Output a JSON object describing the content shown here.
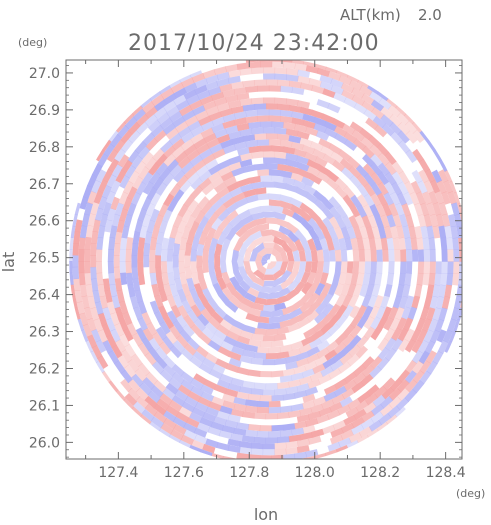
{
  "header": {
    "altitude_label": "ALT(km)",
    "altitude_value": "2.0",
    "timestamp": "2017/10/24 23:42:00"
  },
  "colors": {
    "positive": "#f4a0a0",
    "negative": "#a8aaf4",
    "axis": "#6b6b6b",
    "background": "#ffffff"
  },
  "chart_data": {
    "type": "heatmap",
    "title": "2017/10/24 23:42:00",
    "subtitle": "ALT(km) 2.0",
    "xlabel": "lon",
    "ylabel": "lat",
    "xunit": "(deg)",
    "yunit": "(deg)",
    "xlim": [
      127.24,
      128.45
    ],
    "ylim": [
      25.955,
      27.035
    ],
    "xticks": [
      127.4,
      127.6,
      127.8,
      128.0,
      128.2,
      128.4
    ],
    "xtick_labels": [
      "127.4",
      "127.6",
      "127.8",
      "128.0",
      "128.2",
      "128.4"
    ],
    "yticks": [
      26.0,
      26.1,
      26.2,
      26.3,
      26.4,
      26.5,
      26.6,
      26.7,
      26.8,
      26.9,
      27.0
    ],
    "ytick_labels": [
      "26.0",
      "26.1",
      "26.2",
      "26.3",
      "26.4",
      "26.5",
      "26.6",
      "26.7",
      "26.8",
      "26.9",
      "27.0"
    ],
    "center": {
      "lon": 127.86,
      "lat": 26.49
    },
    "coverage_radius_lon": 0.61,
    "coverage_radius_lat": 0.55,
    "field": "radial scan pattern of alternating positive (red) and negative (blue) values",
    "grid": false,
    "colorbar": false
  }
}
